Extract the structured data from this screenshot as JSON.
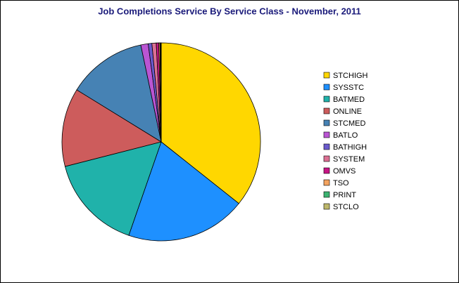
{
  "chart_data": {
    "type": "pie",
    "title": "Job Completions Service By Service Class - November, 2011",
    "categories": [
      "STCHIGH",
      "SYSSTC",
      "BATMED",
      "ONLINE",
      "STCMED",
      "BATLO",
      "BATHIGH",
      "SYSTEM",
      "OMVS",
      "TSO",
      "PRINT",
      "STCLO"
    ],
    "values": [
      35.7,
      19.6,
      15.7,
      12.8,
      12.9,
      1.2,
      0.6,
      0.7,
      0.4,
      0.2,
      0.1,
      0.1
    ],
    "colors": [
      "#FFD700",
      "#1E90FF",
      "#20B2AA",
      "#CD5C5C",
      "#4682B4",
      "#BA55D3",
      "#6A5ACD",
      "#DB7093",
      "#C71585",
      "#F4A460",
      "#3CB371",
      "#BDB76B"
    ],
    "legend": "right"
  }
}
